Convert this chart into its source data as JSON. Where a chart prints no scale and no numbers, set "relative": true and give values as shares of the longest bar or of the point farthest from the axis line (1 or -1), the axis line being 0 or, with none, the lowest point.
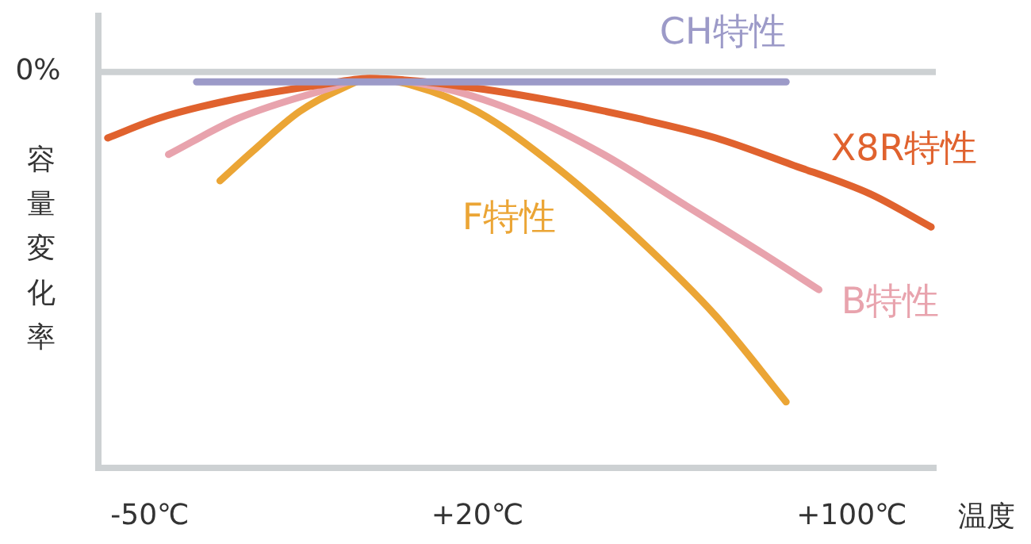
{
  "chart_data": {
    "type": "line",
    "relative": true,
    "xlabel": "温度",
    "ylabel": "容量変化率",
    "xlim": [
      -61,
      118
    ],
    "xticks": [
      {
        "value": -50,
        "label": "-50℃"
      },
      {
        "value": 20,
        "label": "+20℃"
      },
      {
        "value": 100,
        "label": "+100℃"
      }
    ],
    "grid": false,
    "legend": false,
    "marker": "none",
    "line_style": "solid",
    "ref_lines": [
      {
        "axis": "y",
        "value": 0,
        "label": "0%",
        "color": "#cdd1d3"
      }
    ],
    "series": [
      {
        "name": "CH特性",
        "color": "#9c9ac8",
        "x": [
          -40,
          86
        ],
        "values": [
          -0.03,
          -0.03
        ]
      },
      {
        "name": "X8R特性",
        "color": "#e0622e",
        "x": [
          -59,
          -48,
          -31,
          -14,
          -3,
          20,
          37,
          54,
          71,
          87,
          104,
          117
        ],
        "values": [
          -0.2,
          -0.14,
          -0.08,
          -0.04,
          -0.02,
          -0.05,
          -0.09,
          -0.14,
          -0.2,
          -0.28,
          -0.37,
          -0.47
        ]
      },
      {
        "name": "B特性",
        "color": "#e8a3ad",
        "x": [
          -46,
          -31,
          -14,
          -3,
          13,
          30,
          47,
          64,
          81,
          93
        ],
        "values": [
          -0.25,
          -0.14,
          -0.06,
          -0.02,
          -0.05,
          -0.13,
          -0.25,
          -0.4,
          -0.55,
          -0.66
        ]
      },
      {
        "name": "F特性",
        "color": "#eba535",
        "x": [
          -35,
          -28,
          -18,
          -9,
          -3,
          6,
          20,
          37,
          54,
          71,
          86
        ],
        "values": [
          -0.33,
          -0.24,
          -0.12,
          -0.05,
          -0.02,
          -0.04,
          -0.12,
          -0.29,
          -0.5,
          -0.74,
          -1
        ]
      }
    ]
  }
}
